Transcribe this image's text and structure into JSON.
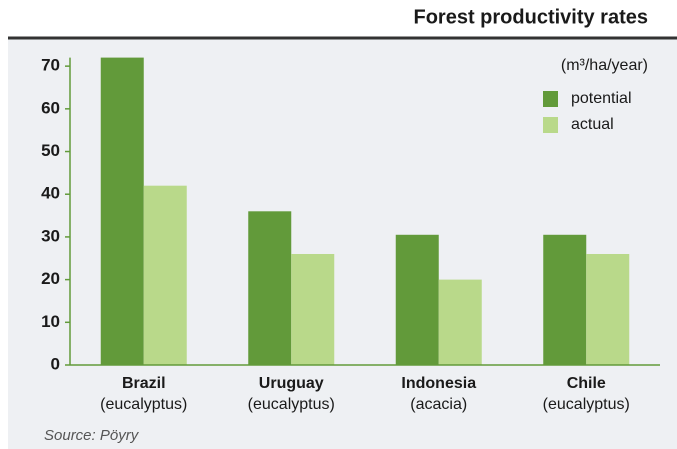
{
  "chart_data": {
    "type": "bar",
    "title": "Forest productivity rates",
    "unit_label": "(m³/ha/year)",
    "categories": [
      "Brazil",
      "Uruguay",
      "Indonesia",
      "Chile"
    ],
    "subcategories": [
      "(eucalyptus)",
      "(eucalyptus)",
      "(acacia)",
      "(eucalyptus)"
    ],
    "series": [
      {
        "name": "potential",
        "color": "#629a3a",
        "values": [
          72,
          36,
          30.5,
          30.5
        ]
      },
      {
        "name": "actual",
        "color": "#b9d98a",
        "values": [
          42,
          26,
          20,
          26
        ]
      }
    ],
    "ylim": [
      0,
      72
    ],
    "yticks": [
      0,
      10,
      20,
      30,
      40,
      50,
      60,
      70
    ],
    "legend": "top-right",
    "source": "Source: Pöyry"
  }
}
